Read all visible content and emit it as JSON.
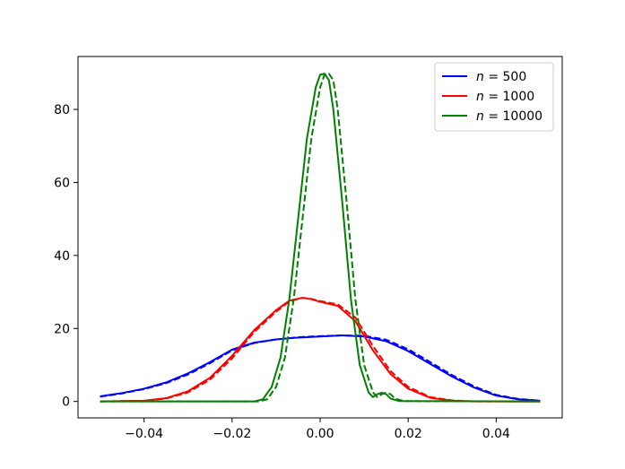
{
  "chart_data": {
    "type": "line",
    "title": "",
    "xlabel": "",
    "ylabel": "",
    "xlim": [
      -0.055,
      0.055
    ],
    "ylim": [
      -4.5,
      94.5
    ],
    "xticks": [
      -0.04,
      -0.02,
      0.0,
      0.02,
      0.04
    ],
    "xtick_labels": [
      "−0.04",
      "−0.02",
      "0.00",
      "0.02",
      "0.04"
    ],
    "yticks": [
      0,
      20,
      40,
      60,
      80
    ],
    "ytick_labels": [
      "0",
      "20",
      "40",
      "60",
      "80"
    ],
    "grid": false,
    "legend": {
      "placement": "top-right",
      "entries": [
        {
          "italic": "n",
          "rest": " = 500",
          "color": "#0000ff"
        },
        {
          "italic": "n",
          "rest": " = 1000",
          "color": "#ff0000"
        },
        {
          "italic": "n",
          "rest": " = 10000",
          "color": "#008000"
        }
      ]
    },
    "series": [
      {
        "color": "#0000ff",
        "style": "solid",
        "x": [
          -0.05,
          -0.045,
          -0.04,
          -0.035,
          -0.03,
          -0.025,
          -0.02,
          -0.015,
          -0.01,
          -0.005,
          0.0,
          0.005,
          0.01,
          0.015,
          0.02,
          0.025,
          0.03,
          0.035,
          0.04,
          0.045,
          0.05
        ],
        "y": [
          1.4,
          2.3,
          3.5,
          5.2,
          7.7,
          10.8,
          14.2,
          16.1,
          17.0,
          17.5,
          17.8,
          18.1,
          17.8,
          16.5,
          13.8,
          10.3,
          6.8,
          3.8,
          1.6,
          0.6,
          0.2
        ]
      },
      {
        "color": "#0000ff",
        "style": "dashed",
        "x": [
          -0.05,
          -0.045,
          -0.04,
          -0.035,
          -0.03,
          -0.025,
          -0.02,
          -0.015,
          -0.01,
          -0.005,
          0.0,
          0.005,
          0.01,
          0.015,
          0.02,
          0.025,
          0.03,
          0.035,
          0.04,
          0.045,
          0.05
        ],
        "y": [
          1.3,
          2.2,
          3.4,
          5.0,
          7.4,
          10.5,
          14.0,
          16.0,
          17.0,
          17.6,
          17.9,
          18.1,
          18.0,
          16.9,
          14.3,
          10.8,
          7.2,
          4.1,
          1.8,
          0.7,
          0.2
        ]
      },
      {
        "color": "#ff0000",
        "style": "solid",
        "x": [
          -0.05,
          -0.04,
          -0.035,
          -0.03,
          -0.025,
          -0.02,
          -0.015,
          -0.01,
          -0.007,
          -0.004,
          -0.002,
          0.0,
          0.004,
          0.008,
          0.012,
          0.016,
          0.02,
          0.025,
          0.03,
          0.035,
          0.05
        ],
        "y": [
          0.0,
          0.2,
          0.9,
          2.8,
          6.5,
          12.5,
          19.5,
          25.0,
          27.6,
          28.4,
          28.0,
          27.3,
          26.2,
          22.0,
          14.0,
          7.5,
          3.5,
          1.0,
          0.2,
          0.0,
          0.0
        ]
      },
      {
        "color": "#ff0000",
        "style": "dashed",
        "x": [
          -0.05,
          -0.04,
          -0.035,
          -0.03,
          -0.025,
          -0.02,
          -0.015,
          -0.01,
          -0.007,
          -0.004,
          -0.002,
          0.0,
          0.004,
          0.008,
          0.012,
          0.016,
          0.02,
          0.025,
          0.03,
          0.035,
          0.05
        ],
        "y": [
          0.0,
          0.2,
          0.8,
          2.5,
          6.0,
          11.8,
          19.0,
          24.6,
          27.4,
          28.4,
          28.1,
          27.5,
          26.6,
          23.0,
          15.2,
          8.3,
          4.0,
          1.2,
          0.3,
          0.0,
          0.0
        ]
      },
      {
        "color": "#008000",
        "style": "solid",
        "x": [
          -0.05,
          -0.015,
          -0.013,
          -0.011,
          -0.009,
          -0.007,
          -0.005,
          -0.003,
          -0.001,
          0.0,
          0.001,
          0.002,
          0.003,
          0.005,
          0.007,
          0.009,
          0.011,
          0.012,
          0.013,
          0.014,
          0.015,
          0.016,
          0.018,
          0.05
        ],
        "y": [
          0.0,
          0.0,
          0.6,
          4.0,
          12.0,
          28.0,
          50.0,
          72.0,
          86.0,
          89.5,
          89.8,
          88.0,
          80.0,
          55.0,
          28.0,
          10.0,
          2.5,
          1.2,
          2.0,
          2.4,
          2.0,
          0.8,
          0.1,
          0.0
        ]
      },
      {
        "color": "#008000",
        "style": "dashed",
        "x": [
          -0.05,
          -0.014,
          -0.012,
          -0.01,
          -0.008,
          -0.006,
          -0.004,
          -0.002,
          0.0,
          0.001,
          0.002,
          0.003,
          0.004,
          0.006,
          0.008,
          0.01,
          0.012,
          0.013,
          0.014,
          0.015,
          0.016,
          0.017,
          0.019,
          0.05
        ],
        "y": [
          0.0,
          0.0,
          0.6,
          4.0,
          12.0,
          28.0,
          50.0,
          72.0,
          86.0,
          89.5,
          89.8,
          88.0,
          80.0,
          55.0,
          28.0,
          10.0,
          2.5,
          1.2,
          2.0,
          2.4,
          2.0,
          0.8,
          0.1,
          0.0
        ]
      }
    ]
  }
}
